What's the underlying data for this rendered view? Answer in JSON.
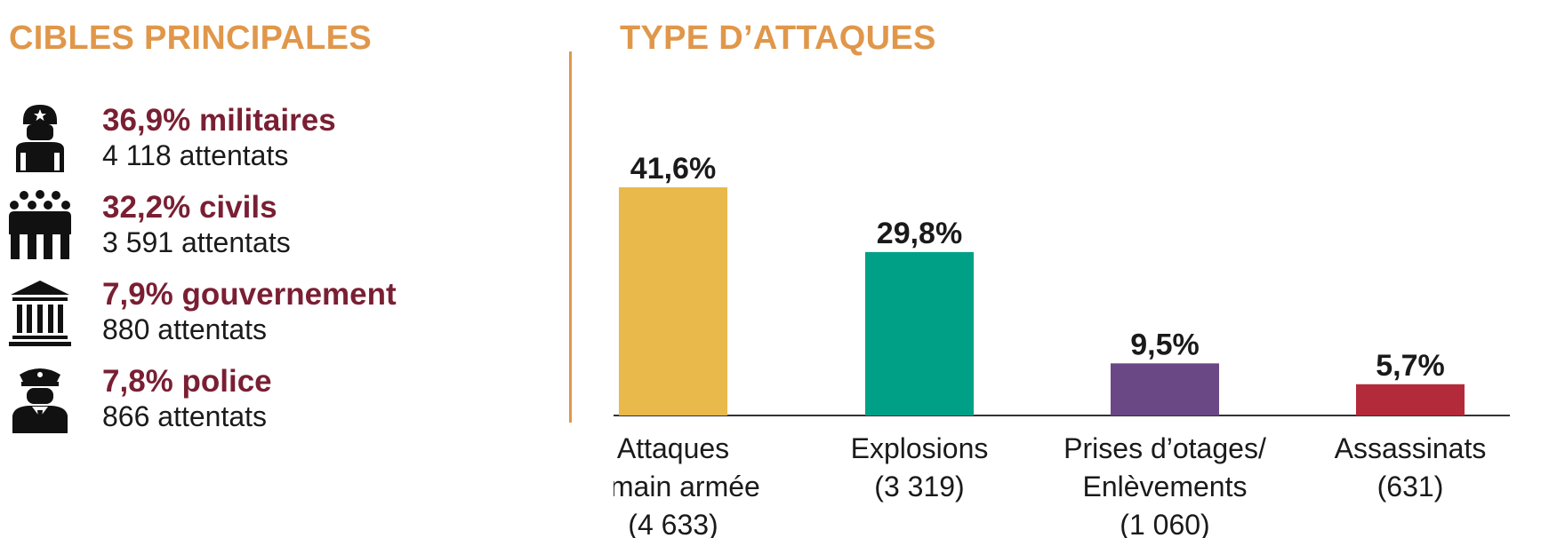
{
  "colors": {
    "heading": "#e0974a",
    "target_title": "#7a1f33",
    "icon": "#111111",
    "axis": "#333333"
  },
  "left": {
    "title": "CIBLES PRINCIPALES",
    "targets": [
      {
        "icon": "soldier-icon",
        "title": "36,9% militaires",
        "subtitle": "4 118 attentats"
      },
      {
        "icon": "crowd-icon",
        "title": "32,2% civils",
        "subtitle": "3 591 attentats"
      },
      {
        "icon": "government-building-icon",
        "title": "7,9% gouvernement",
        "subtitle": "880 attentats"
      },
      {
        "icon": "police-officer-icon",
        "title": "7,8% police",
        "subtitle": "866 attentats"
      }
    ]
  },
  "chart_data": {
    "type": "bar",
    "title": "TYPE D’ATTAQUES",
    "categories": [
      [
        "Attaques",
        "à main armée",
        "(4 633)"
      ],
      [
        "Explosions",
        "(3 319)"
      ],
      [
        "Prises d’otages/",
        "Enlèvements",
        "(1 060)"
      ],
      [
        "Assassinats",
        "(631)"
      ]
    ],
    "values": [
      41.6,
      29.8,
      9.5,
      5.7
    ],
    "value_labels": [
      "41,6%",
      "29,8%",
      "9,5%",
      "5,7%"
    ],
    "colors": [
      "#e9b94b",
      "#00a087",
      "#6a4886",
      "#b32a3a"
    ],
    "ylim": [
      0,
      45
    ],
    "grid": false,
    "legend": "none"
  }
}
